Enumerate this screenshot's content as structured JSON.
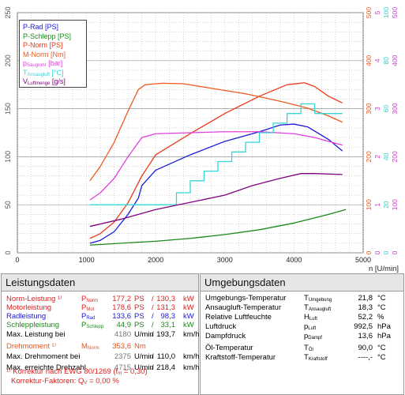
{
  "chart_data": {
    "type": "line",
    "xlabel": "n [U/min]",
    "xlim": [
      0,
      5000
    ],
    "x_ticks": [
      "0",
      "1000",
      "2000",
      "3000",
      "4000",
      "5000"
    ],
    "axes": {
      "left_ps": {
        "ticks": [
          "0",
          "50",
          "100",
          "150",
          "200",
          "250"
        ],
        "color": "#555555"
      },
      "right_nm": {
        "ticks": [
          "0",
          "100",
          "200",
          "300",
          "400",
          "500"
        ],
        "color": "#e8541a"
      },
      "right_bar": {
        "ticks": [
          "0",
          "1",
          "2",
          "3",
          "4",
          "5"
        ],
        "color": "#cc33cc"
      },
      "right_temp": {
        "ticks": [
          "0",
          "20",
          "40",
          "60",
          "80",
          "100"
        ],
        "color": "#33cccc"
      },
      "right_gs": {
        "ticks": [
          "0",
          "100",
          "200",
          "300",
          "400",
          "500"
        ],
        "color": "#cc33cc"
      }
    },
    "legend": [
      {
        "name": "P-Rad [PS]",
        "color": "#1a1ad6"
      },
      {
        "name": "P-Schlepp [PS]",
        "color": "#1a8a1a"
      },
      {
        "name": "P-Norm [PS]",
        "color": "#e83a1a"
      },
      {
        "name": "M-Norm [Nm]",
        "color": "#ee5a20"
      },
      {
        "name": "p",
        "sub": "Saugrohr",
        "unit": " [bar]",
        "color": "#e040e0"
      },
      {
        "name": "T",
        "sub": "Ansaugluft",
        "unit": " [°C]",
        "color": "#33d6d6"
      },
      {
        "name": "V",
        "sub": "Luftmenge",
        "unit": " [g/s]",
        "color": "#800080"
      }
    ],
    "series": [
      {
        "name": "P-Rad [PS]",
        "color": "#1a1ad6",
        "scale": 250,
        "points": [
          [
            1050,
            10
          ],
          [
            1200,
            13
          ],
          [
            1400,
            22
          ],
          [
            1600,
            40
          ],
          [
            1750,
            57
          ],
          [
            1800,
            70
          ],
          [
            2000,
            86
          ],
          [
            2500,
            102
          ],
          [
            3000,
            116
          ],
          [
            3500,
            126
          ],
          [
            3800,
            133
          ],
          [
            4000,
            134
          ],
          [
            4200,
            131
          ],
          [
            4500,
            118
          ],
          [
            4700,
            106
          ]
        ]
      },
      {
        "name": "P-Schlepp [PS]",
        "color": "#1a8a1a",
        "scale": 250,
        "points": [
          [
            1050,
            8
          ],
          [
            1500,
            10
          ],
          [
            2000,
            12
          ],
          [
            2500,
            15
          ],
          [
            3000,
            19
          ],
          [
            3500,
            24
          ],
          [
            4000,
            31
          ],
          [
            4500,
            40
          ],
          [
            4750,
            45
          ]
        ]
      },
      {
        "name": "P-Norm [PS]",
        "color": "#e83a1a",
        "scale": 250,
        "points": [
          [
            1050,
            15
          ],
          [
            1200,
            20
          ],
          [
            1400,
            32
          ],
          [
            1600,
            52
          ],
          [
            1800,
            80
          ],
          [
            2000,
            102
          ],
          [
            2500,
            124
          ],
          [
            3000,
            145
          ],
          [
            3500,
            163
          ],
          [
            3900,
            175
          ],
          [
            4150,
            177
          ],
          [
            4300,
            173
          ],
          [
            4500,
            163
          ],
          [
            4700,
            156
          ]
        ]
      },
      {
        "name": "M-Norm [Nm]",
        "color": "#ee5a20",
        "scale": 500,
        "points": [
          [
            1050,
            150
          ],
          [
            1200,
            180
          ],
          [
            1400,
            230
          ],
          [
            1600,
            295
          ],
          [
            1750,
            340
          ],
          [
            1850,
            350
          ],
          [
            2100,
            353
          ],
          [
            2400,
            352
          ],
          [
            2700,
            345
          ],
          [
            3000,
            338
          ],
          [
            3300,
            331
          ],
          [
            3600,
            322
          ],
          [
            3900,
            312
          ],
          [
            4200,
            301
          ],
          [
            4500,
            285
          ],
          [
            4700,
            272
          ]
        ]
      },
      {
        "name": "p Saugrohr [bar]",
        "color": "#e040e0",
        "scale": 5,
        "points": [
          [
            1050,
            1.1
          ],
          [
            1200,
            1.25
          ],
          [
            1400,
            1.55
          ],
          [
            1600,
            2.0
          ],
          [
            1800,
            2.4
          ],
          [
            2000,
            2.48
          ],
          [
            2500,
            2.5
          ],
          [
            3000,
            2.52
          ],
          [
            3500,
            2.52
          ],
          [
            4000,
            2.48
          ],
          [
            4300,
            2.4
          ],
          [
            4500,
            2.32
          ],
          [
            4700,
            2.24
          ]
        ]
      },
      {
        "name": "T Ansaugluft [°C]",
        "color": "#33d6d6",
        "step": true,
        "scale": 100,
        "points": [
          [
            1050,
            20
          ],
          [
            2200,
            20
          ],
          [
            2300,
            25
          ],
          [
            2500,
            30
          ],
          [
            2700,
            34
          ],
          [
            2900,
            38
          ],
          [
            3100,
            42
          ],
          [
            3300,
            46
          ],
          [
            3500,
            50
          ],
          [
            3700,
            54
          ],
          [
            3900,
            58
          ],
          [
            4100,
            62
          ],
          [
            4300,
            58
          ],
          [
            4500,
            58
          ],
          [
            4700,
            58
          ]
        ]
      },
      {
        "name": "V Luftmenge [g/s]",
        "color": "#800080",
        "scale": 500,
        "points": [
          [
            1050,
            55
          ],
          [
            1500,
            70
          ],
          [
            2000,
            90
          ],
          [
            2500,
            105
          ],
          [
            3000,
            120
          ],
          [
            3400,
            140
          ],
          [
            3800,
            155
          ],
          [
            4100,
            165
          ],
          [
            4300,
            165
          ],
          [
            4700,
            163
          ]
        ]
      }
    ]
  },
  "leistung": {
    "title": "Leistungsdaten",
    "rows": [
      {
        "label": "Norm-Leistung ¹⁾",
        "sym": "P",
        "sub": "Norm",
        "v1": "177,2",
        "u1": "PS",
        "sep": "/",
        "v2": "130,3",
        "u2": "kW",
        "color": "#e02020"
      },
      {
        "label": "Motorleistung",
        "sym": "P",
        "sub": "Mot",
        "v1": "178,6",
        "u1": "PS",
        "sep": "/",
        "v2": "131,3",
        "u2": "kW",
        "color": "#e02020"
      },
      {
        "label": "Radleistung",
        "sym": "P",
        "sub": "Rad",
        "v1": "133,6",
        "u1": "PS",
        "sep": "/",
        "v2": "98,3",
        "u2": "kW",
        "color": "#1a1ad6"
      },
      {
        "label": "Schleppleistung",
        "sym": "P",
        "sub": "Schlepp",
        "v1": "44,9",
        "u1": "PS",
        "sep": "/",
        "v2": "33,1",
        "u2": "kW",
        "color": "#1a8a1a"
      },
      {
        "label": "Max. Leistung bei",
        "sym": "",
        "sub": "",
        "v1": "4180",
        "u1": "U/min",
        "sep": "/",
        "v2": "193,7",
        "u2": "km/h",
        "color": "#000000",
        "v1color": "#777777"
      },
      {
        "label": "Drehmoment ¹⁾",
        "sym": "M",
        "sub": "Norm",
        "v1": "353,6",
        "u1": "Nm",
        "sep": "",
        "v2": "",
        "u2": "",
        "color": "#e8541a"
      },
      {
        "label": "Max. Drehmoment bei",
        "sym": "",
        "sub": "",
        "v1": "2375",
        "u1": "U/min",
        "sep": "/",
        "v2": "110,0",
        "u2": "km/h",
        "color": "#000000",
        "v1color": "#777777"
      },
      {
        "label": "Max. erreichte Drehzahl",
        "sym": "",
        "sub": "",
        "v1": "4715",
        "u1": "U/min",
        "sep": "/",
        "v2": "218,4",
        "u2": "km/h",
        "color": "#000000",
        "v1color": "#777777"
      }
    ],
    "footnote1": "¹⁾ Korrektur nach EWG 80/1269 (f",
    "footnote1_sub": "m",
    "footnote1_end": " = 0,30)",
    "footnote2": "Korrektur-Faktoren: Q",
    "footnote2_sub": "V",
    "footnote2_end": " =   0,00 %"
  },
  "umgebung": {
    "title": "Umgebungsdaten",
    "rows": [
      {
        "label": "Umgebungs-Temperatur",
        "sym": "T",
        "sub": "Umgebung",
        "val": "21,8",
        "unit": "°C"
      },
      {
        "label": "Ansaugluft-Temperatur",
        "sym": "T",
        "sub": "Ansaugluft",
        "val": "18,3",
        "unit": "°C"
      },
      {
        "label": "Relative Luftfeuchte",
        "sym": "H",
        "sub": "Luft",
        "val": "52,2",
        "unit": "%"
      },
      {
        "label": "Luftdruck",
        "sym": "p",
        "sub": "Luft",
        "val": "992,5",
        "unit": "hPa"
      },
      {
        "label": "Dampfdruck",
        "sym": "p",
        "sub": "Dampf",
        "val": "13,6",
        "unit": "hPa"
      },
      {
        "label": "Öl-Temperatur",
        "sym": "T",
        "sub": "Öl",
        "val": "90,0",
        "unit": "°C"
      },
      {
        "label": "Kraftstoff-Temperatur",
        "sym": "T",
        "sub": "Kraftstoff",
        "val": "----,-",
        "unit": "°C"
      }
    ]
  }
}
